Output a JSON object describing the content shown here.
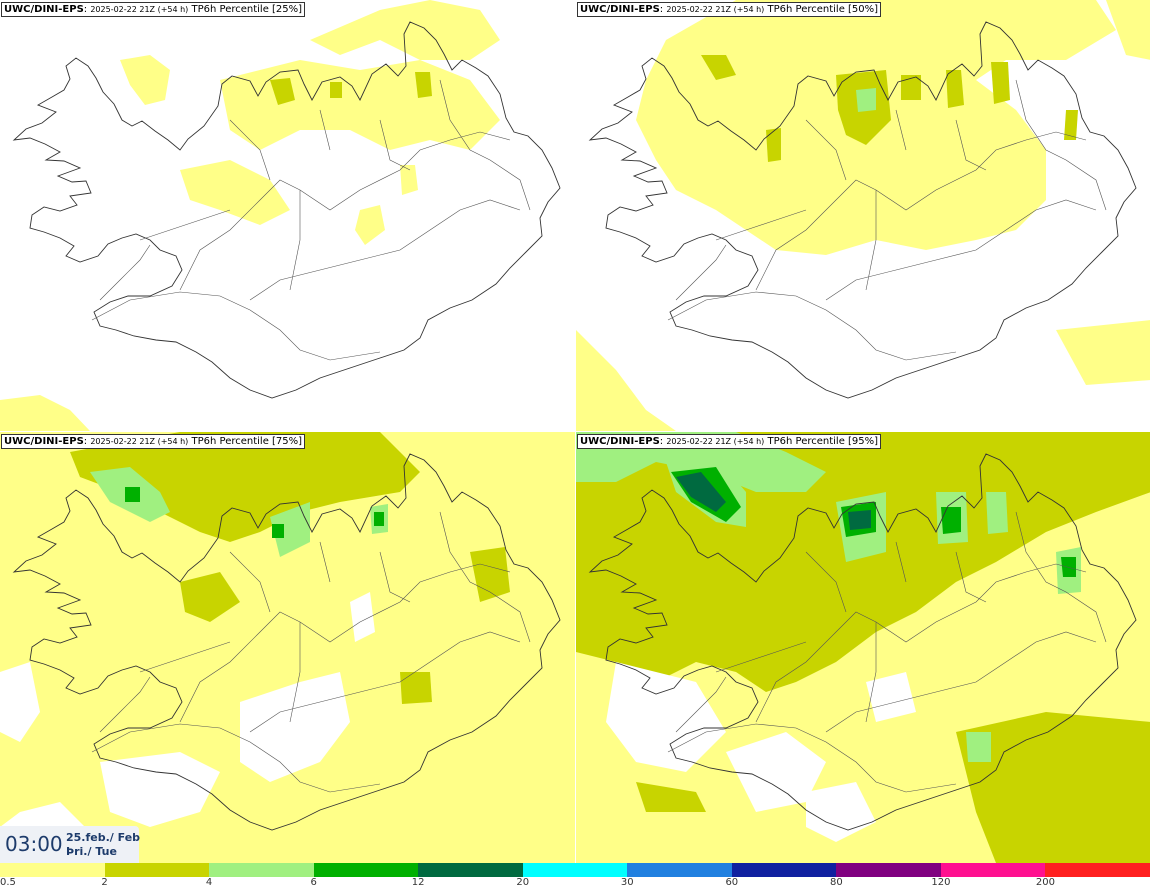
{
  "panels": [
    {
      "model": "UWC/DINI-EPS",
      "run": "2025-02-22 21Z (+54 h)",
      "field": "TP6h Percentile [25%]"
    },
    {
      "model": "UWC/DINI-EPS",
      "run": "2025-02-22 21Z (+54 h)",
      "field": "TP6h Percentile [50%]"
    },
    {
      "model": "UWC/DINI-EPS",
      "run": "2025-02-22 21Z (+54 h)",
      "field": "TP6h Percentile [75%]"
    },
    {
      "model": "UWC/DINI-EPS",
      "run": "2025-02-22 21Z (+54 h)",
      "field": "TP6h Percentile [95%]"
    }
  ],
  "valid_time": {
    "time": "03:00",
    "date": "25.feb./ Feb",
    "day": "Þri./ Tue"
  },
  "legend": {
    "labels": [
      "0.5",
      "2",
      "4",
      "6",
      "12",
      "20",
      "30",
      "60",
      "80",
      "120",
      "200"
    ],
    "colors": [
      "#ffff88",
      "#c8d400",
      "#a0f080",
      "#00b000",
      "#006a40",
      "#00ffff",
      "#2080e0",
      "#1020a0",
      "#800080",
      "#ff1090",
      "#ff2020"
    ]
  },
  "map_colors": {
    "class_0_5_2": "#ffff88",
    "class_2_4": "#c8d400",
    "class_4_6": "#a0f080",
    "class_6_12": "#00b000",
    "class_12_20": "#006a40"
  }
}
